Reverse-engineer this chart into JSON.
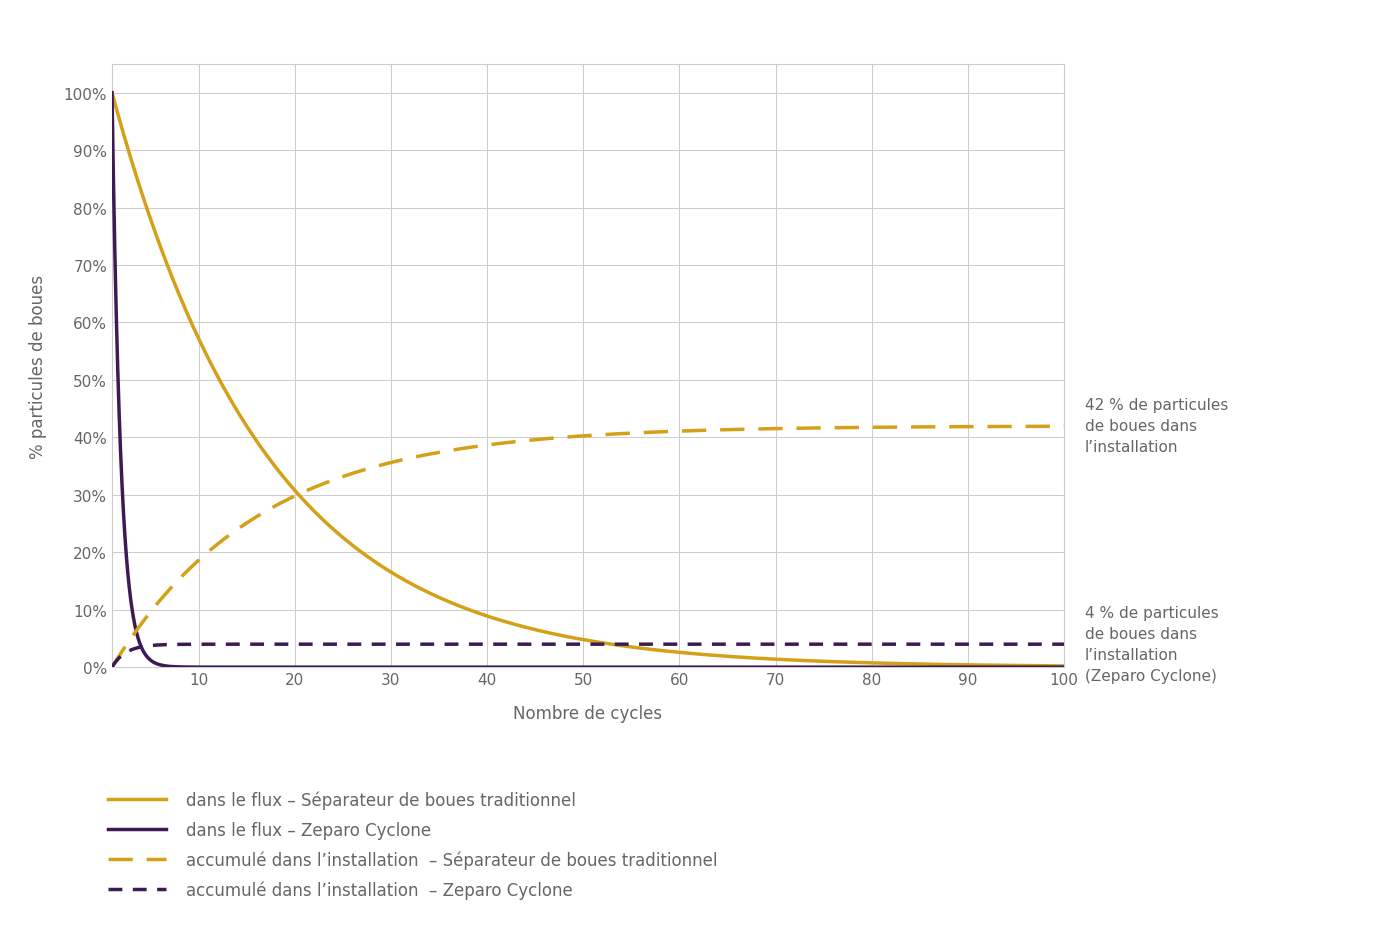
{
  "xlabel": "Nombre de cycles",
  "ylabel": "% particules de boues",
  "color_yellow": "#D4A017",
  "color_purple": "#3D1A54",
  "annotation_42": "42 % de particules\nde boues dans\nl’installation",
  "annotation_4": "4 % de particules\nde boues dans\nl’installation\n(Zeparo Cyclone)",
  "legend": [
    {
      "label": "dans le flux – Séparateur de boues traditionnel",
      "color": "#D4A017",
      "linestyle": "solid"
    },
    {
      "label": "dans le flux – Zeparo Cyclone",
      "color": "#3D1A54",
      "linestyle": "solid"
    },
    {
      "label": "accumulé dans l’installation  – Séparateur de boues traditionnel",
      "color": "#D4A017",
      "linestyle": "dashed"
    },
    {
      "label": "accumulé dans l’installation  – Zeparo Cyclone",
      "color": "#3D1A54",
      "linestyle": "dashed"
    }
  ],
  "ylim": [
    0,
    105
  ],
  "xlim": [
    1,
    100
  ],
  "background_color": "#ffffff",
  "grid_color": "#cccccc",
  "text_color": "#666666",
  "axis_fontsize": 12,
  "tick_fontsize": 11,
  "annotation_fontsize": 11,
  "legend_fontsize": 12,
  "k_yellow": 0.062,
  "k_purple": 1.1,
  "m_yellow_asymptote": 42,
  "m_yellow_rate": 0.065,
  "m_purple_asymptote": 4,
  "m_purple_rate": 0.7
}
